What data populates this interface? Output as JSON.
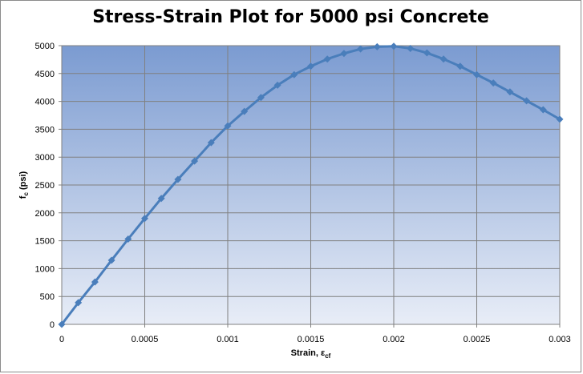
{
  "chart_data": {
    "type": "line",
    "title": "Stress-Strain Plot for 5000 psi Concrete",
    "xlabel": {
      "main": "Strain, ε",
      "sub": "cf"
    },
    "ylabel": {
      "main": "f",
      "sub": "c",
      "rest": " (psi)"
    },
    "xlim": [
      0,
      0.003
    ],
    "ylim": [
      0,
      5000
    ],
    "x_ticks": [
      "0",
      "0.0005",
      "0.001",
      "0.0015",
      "0.002",
      "0.0025",
      "0.003"
    ],
    "y_ticks": [
      "0",
      "500",
      "1000",
      "1500",
      "2000",
      "2500",
      "3000",
      "3500",
      "4000",
      "4500",
      "5000"
    ],
    "grid": true,
    "marker": "diamond",
    "series": [
      {
        "color": "#4a7ebb",
        "x": [
          0,
          0.0001,
          0.0002,
          0.0003,
          0.0004,
          0.0005,
          0.0006,
          0.0007,
          0.0008,
          0.0009,
          0.001,
          0.0011,
          0.0012,
          0.0013,
          0.0014,
          0.0015,
          0.0016,
          0.0017,
          0.0018,
          0.0019,
          0.002,
          0.0021,
          0.0022,
          0.0023,
          0.0024,
          0.0025,
          0.0026,
          0.0027,
          0.0028,
          0.0029,
          0.003
        ],
        "y": [
          0,
          390,
          760,
          1150,
          1530,
          1900,
          2260,
          2600,
          2930,
          3260,
          3560,
          3820,
          4070,
          4290,
          4480,
          4630,
          4760,
          4860,
          4940,
          4980,
          4990,
          4950,
          4870,
          4760,
          4630,
          4480,
          4330,
          4170,
          4010,
          3850,
          3680
        ]
      }
    ],
    "plot_background": {
      "top": "#7b9bd1",
      "bottom": "#e8edf7"
    },
    "grid_color": "#808080"
  }
}
